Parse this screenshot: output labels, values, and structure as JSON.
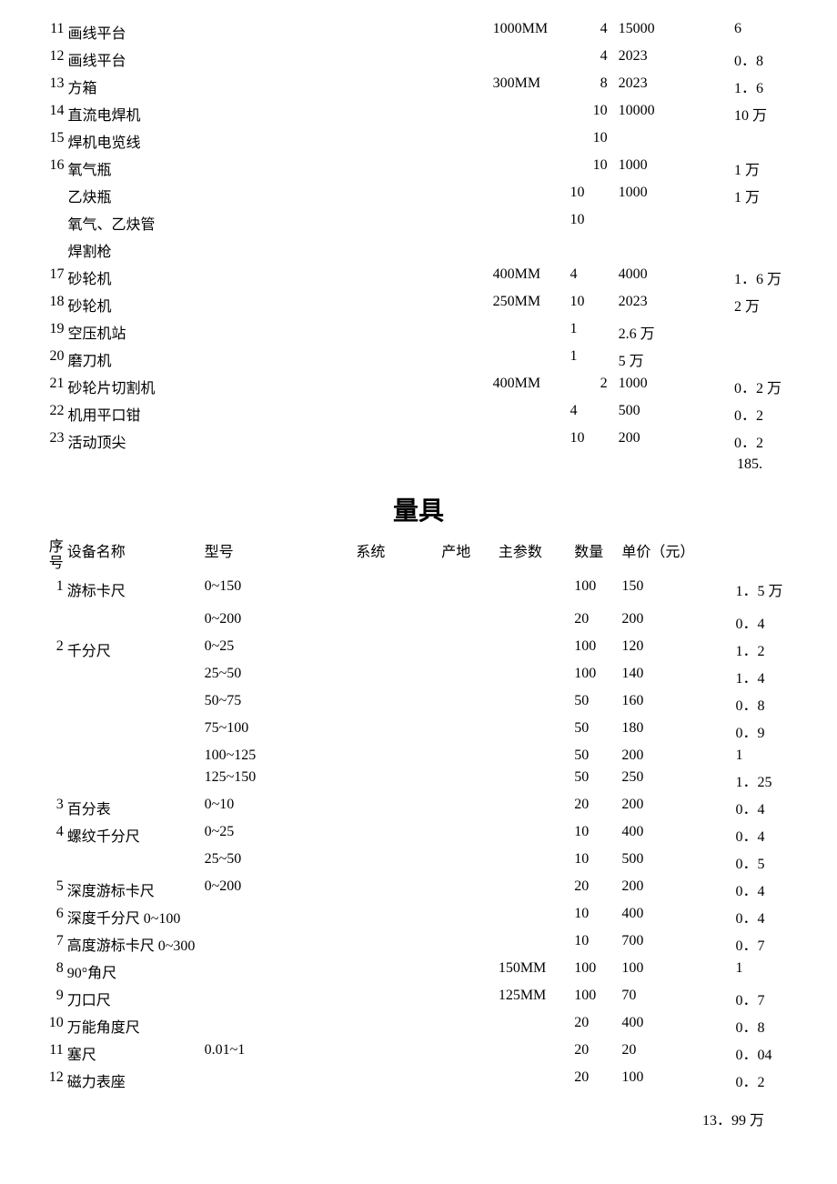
{
  "table1": {
    "rows": [
      {
        "num": "11",
        "name": "画线平台",
        "model": "",
        "system": "",
        "origin": "",
        "param": "1000MM",
        "qty": "4",
        "price": "15000",
        "total": "6"
      },
      {
        "num": "12",
        "name": "画线平台",
        "model": "",
        "system": "",
        "origin": "",
        "param": "",
        "qty": "4",
        "price": "2023",
        "total": "0．8"
      },
      {
        "num": "13",
        "name": "方箱",
        "model": "",
        "system": "",
        "origin": "",
        "param": "300MM",
        "qty": "8",
        "price": "2023",
        "total": "1．6"
      },
      {
        "num": "14",
        "name": "直流电焊机",
        "model": "",
        "system": "",
        "origin": "",
        "param": "",
        "qty": "10",
        "price": "10000",
        "total": "10 万"
      },
      {
        "num": "15",
        "name": "焊机电览线",
        "model": "",
        "system": "",
        "origin": "",
        "param": "",
        "qty": "10",
        "price": "",
        "total": ""
      },
      {
        "num": "16",
        "name": "氧气瓶",
        "model": "",
        "system": "",
        "origin": "",
        "param": "",
        "qty": "10",
        "price": "1000",
        "total": "1 万"
      },
      {
        "num": "",
        "name": "乙炔瓶",
        "model": "",
        "system": "",
        "origin": "",
        "param": "",
        "qty": "10",
        "price": "1000",
        "total": "1 万"
      },
      {
        "num": "",
        "name": "氧气、乙炔管",
        "model": "",
        "system": "",
        "origin": "",
        "param": "",
        "qty": "10",
        "price": "",
        "total": ""
      },
      {
        "num": "",
        "name": "焊割枪",
        "model": "",
        "system": "",
        "origin": "",
        "param": "",
        "qty": "",
        "price": "",
        "total": ""
      },
      {
        "num": "17",
        "name": "砂轮机",
        "model": "",
        "system": "",
        "origin": "",
        "param": "400MM",
        "qty": "4",
        "price": "4000",
        "total": "1．6 万"
      },
      {
        "num": "18",
        "name": "砂轮机",
        "model": "",
        "system": "",
        "origin": "",
        "param": "250MM",
        "qty": "10",
        "price": "2023",
        "total": "2 万"
      },
      {
        "num": "19",
        "name": "空压机站",
        "model": "",
        "system": "",
        "origin": "",
        "param": "",
        "qty": "1",
        "price": "2.6 万",
        "total": ""
      },
      {
        "num": "20",
        "name": "磨刀机",
        "model": "",
        "system": "",
        "origin": "",
        "param": "",
        "qty": "1",
        "price": "5 万",
        "total": ""
      },
      {
        "num": "21",
        "name": "砂轮片切割机",
        "model": "",
        "system": "",
        "origin": "",
        "param": "400MM",
        "qty": "2",
        "price": "1000",
        "total": "0．2 万"
      },
      {
        "num": "22",
        "name": "机用平口钳",
        "model": "",
        "system": "",
        "origin": "",
        "param": "",
        "qty": "4",
        "price": "500",
        "total": "0．2"
      },
      {
        "num": "23",
        "name": "活动顶尖",
        "model": "",
        "system": "",
        "origin": "",
        "param": "",
        "qty": "10",
        "price": "200",
        "total": "0．2"
      }
    ],
    "subtotal": "185."
  },
  "section2_title": "量具",
  "table2": {
    "headers": {
      "num": "序号",
      "name": "设备名称",
      "model": "型号",
      "system": "系统",
      "origin": "产地",
      "param": "主参数",
      "qty": "数量",
      "price": "单价（元）",
      "total": ""
    },
    "rows": [
      {
        "num": "1",
        "name": "游标卡尺",
        "model": "0~150",
        "system": "",
        "origin": "",
        "param": "",
        "qty": "100",
        "price": "150",
        "total": "1．5 万"
      },
      {
        "num": "",
        "name": "",
        "model": "",
        "system": "",
        "origin": "",
        "param": "",
        "qty": "",
        "price": "",
        "total": ""
      },
      {
        "num": "",
        "name": "",
        "model": "0~200",
        "system": "",
        "origin": "",
        "param": "",
        "qty": "20",
        "price": "200",
        "total": "0．4"
      },
      {
        "num": "2",
        "name": "千分尺",
        "model": "0~25",
        "system": "",
        "origin": "",
        "param": "",
        "qty": "100",
        "price": "120",
        "total": "1．2"
      },
      {
        "num": "",
        "name": "",
        "model": "25~50",
        "system": "",
        "origin": "",
        "param": "",
        "qty": "100",
        "price": "140",
        "total": "1．4"
      },
      {
        "num": "",
        "name": "",
        "model": "50~75",
        "system": "",
        "origin": "",
        "param": "",
        "qty": "50",
        "price": "160",
        "total": "0．8"
      },
      {
        "num": "",
        "name": "",
        "model": "75~100",
        "system": "",
        "origin": "",
        "param": "",
        "qty": "50",
        "price": "180",
        "total": "0．9"
      },
      {
        "num": "",
        "name": "",
        "model": "100~125",
        "system": "",
        "origin": "",
        "param": "",
        "qty": "50",
        "price": "200",
        "total": "1"
      },
      {
        "num": "",
        "name": "",
        "model": "125~150",
        "system": "",
        "origin": "",
        "param": "",
        "qty": "50",
        "price": "250",
        "total": "1．25"
      },
      {
        "num": "3",
        "name": "百分表",
        "model": "0~10",
        "system": "",
        "origin": "",
        "param": "",
        "qty": "20",
        "price": "200",
        "total": "0．4"
      },
      {
        "num": "4",
        "name": "螺纹千分尺",
        "model": "0~25",
        "system": "",
        "origin": "",
        "param": "",
        "qty": "10",
        "price": "400",
        "total": "0．4"
      },
      {
        "num": "",
        "name": "",
        "model": "25~50",
        "system": "",
        "origin": "",
        "param": "",
        "qty": "10",
        "price": "500",
        "total": "0．5"
      },
      {
        "num": "5",
        "name": "深度游标卡尺",
        "model": "0~200",
        "system": "",
        "origin": "",
        "param": "",
        "qty": "20",
        "price": "200",
        "total": "0．4"
      },
      {
        "num": "6",
        "name": "深度千分尺 0~100",
        "model": "",
        "system": "",
        "origin": "",
        "param": "",
        "qty": "10",
        "price": "400",
        "total": "0．4"
      },
      {
        "num": "7",
        "name": "高度游标卡尺 0~300",
        "model": "",
        "system": "",
        "origin": "",
        "param": "",
        "qty": "10",
        "price": "700",
        "total": "0．7"
      },
      {
        "num": "8",
        "name": "90°角尺",
        "model": "",
        "system": "",
        "origin": "",
        "param": "150MM",
        "qty": "100",
        "price": "100",
        "total": "1"
      },
      {
        "num": "9",
        "name": "刀口尺",
        "model": "",
        "system": "",
        "origin": "",
        "param": "125MM",
        "qty": "100",
        "price": "70",
        "total": "0．7"
      },
      {
        "num": "10",
        "name": "万能角度尺",
        "model": "",
        "system": "",
        "origin": "",
        "param": "",
        "qty": "20",
        "price": "400",
        "total": "0．8"
      },
      {
        "num": "11",
        "name": "塞尺",
        "model": "0.01~1",
        "system": "",
        "origin": "",
        "param": "",
        "qty": "20",
        "price": "20",
        "total": "0．04"
      },
      {
        "num": "12",
        "name": "磁力表座",
        "model": "",
        "system": "",
        "origin": "",
        "param": "",
        "qty": "20",
        "price": "100",
        "total": "0．2"
      }
    ],
    "subtotal": "13．99 万"
  },
  "style": {
    "background_color": "#ffffff",
    "text_color": "#000000",
    "font_family": "SimSun",
    "base_fontsize": 16,
    "title_fontsize": 28
  }
}
